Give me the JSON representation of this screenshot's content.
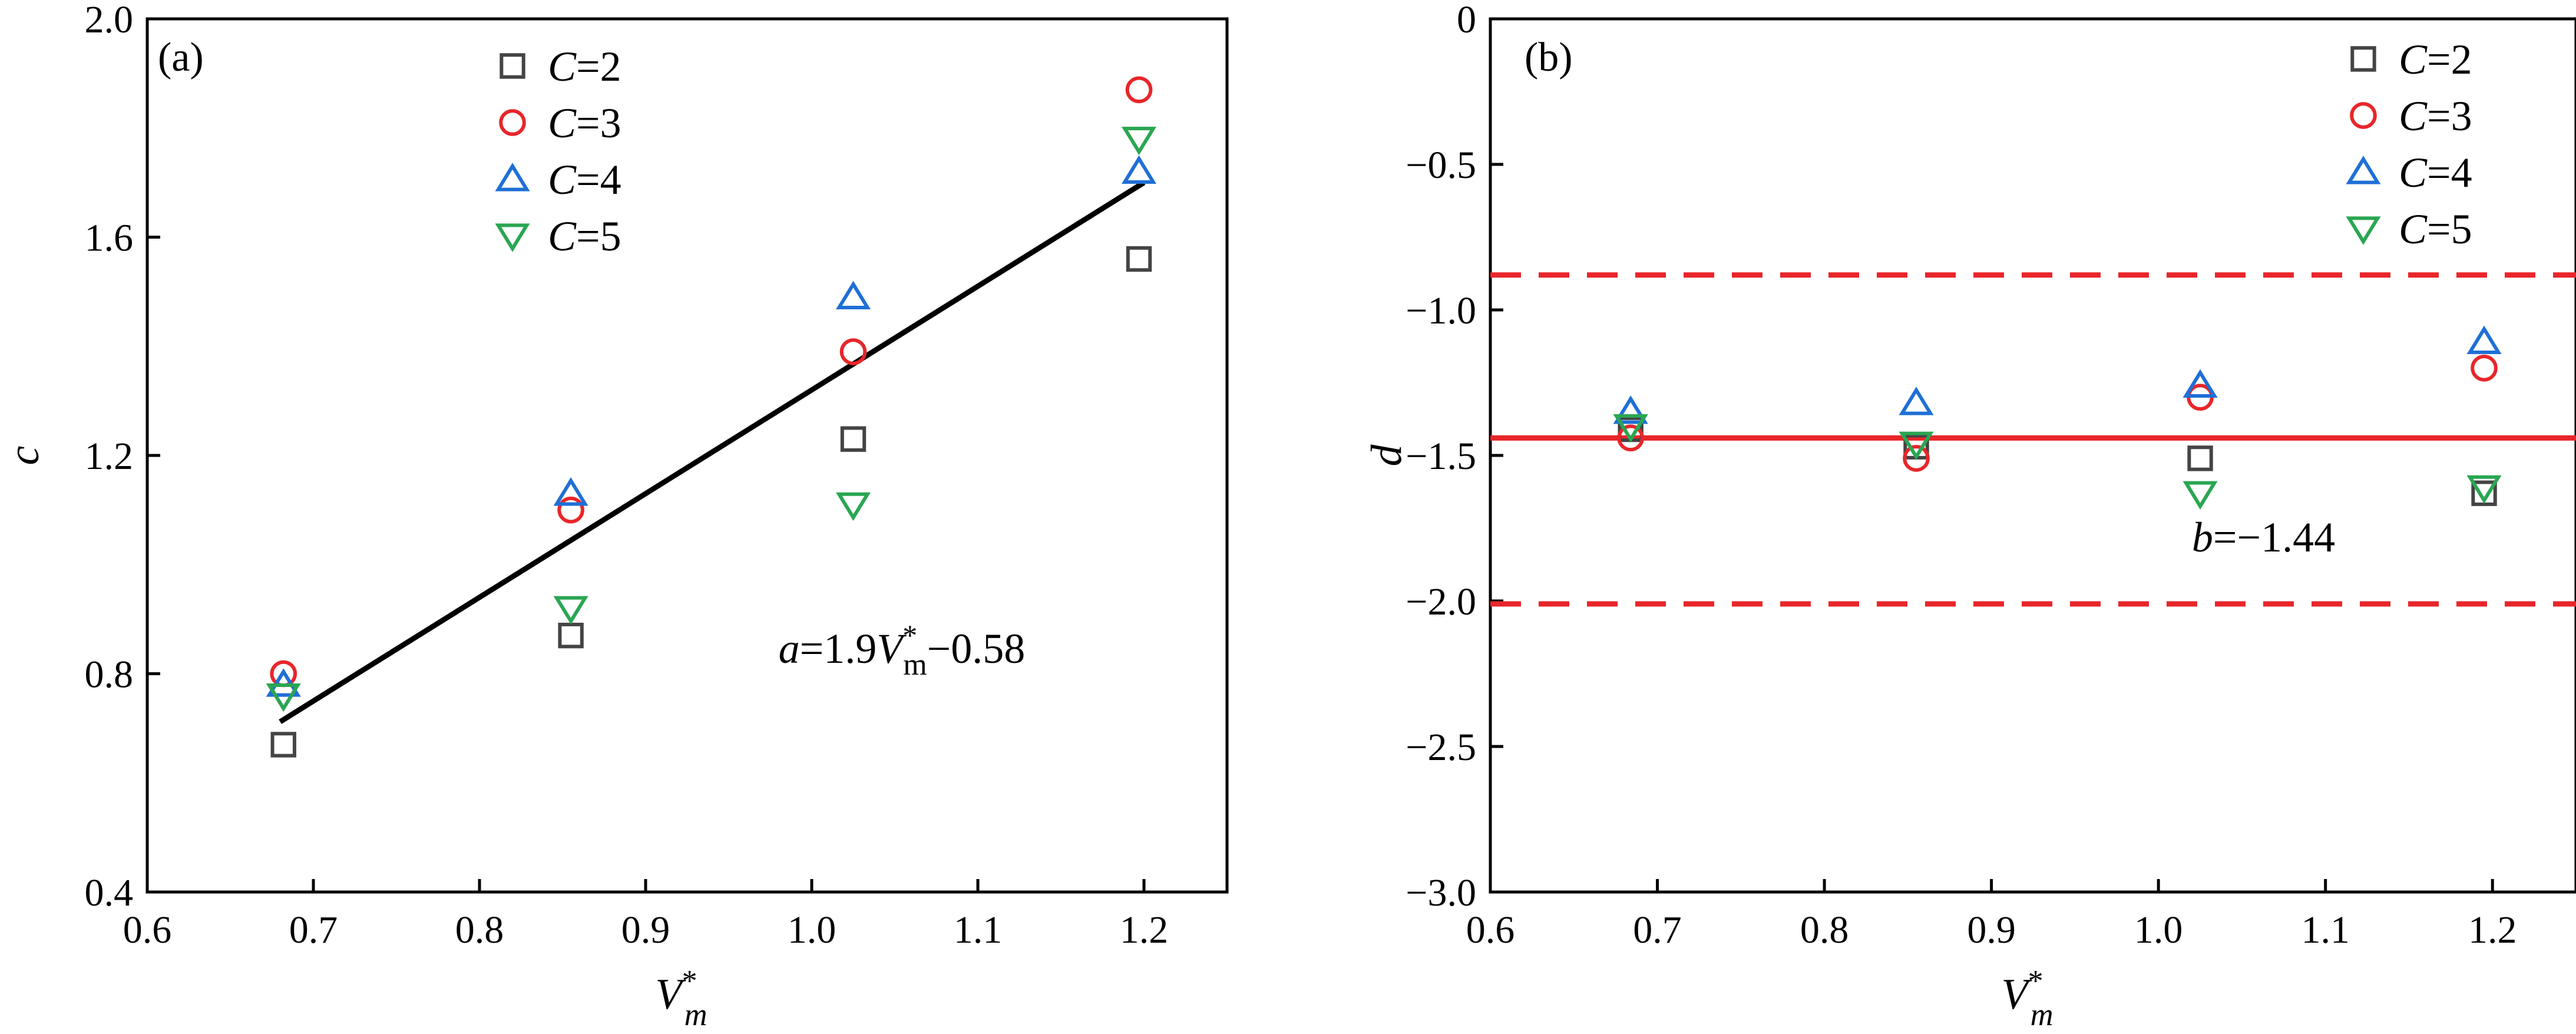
{
  "chart_data": [
    {
      "type": "scatter",
      "panel_label": "(a)",
      "xlabel": "V*m",
      "ylabel": "c",
      "xlim": [
        0.6,
        1.25
      ],
      "ylim": [
        0.4,
        2.0
      ],
      "x_ticks": [
        0.6,
        0.7,
        0.8,
        0.9,
        1.0,
        1.1,
        1.2
      ],
      "x_tick_labels": [
        "0.6",
        "0.7",
        "0.8",
        "0.9",
        "1.0",
        "1.1",
        "1.2"
      ],
      "y_ticks": [
        0.4,
        0.8,
        1.2,
        1.6,
        2.0
      ],
      "y_tick_labels": [
        "0.4",
        "0.8",
        "1.2",
        "1.6",
        "2.0"
      ],
      "legend_position": "top-center",
      "series": [
        {
          "name": "C=2",
          "label_var": "C",
          "label_val": "=2",
          "marker": "square",
          "color": "#444444",
          "x": [
            0.682,
            0.855,
            1.025,
            1.197
          ],
          "values": [
            0.67,
            0.87,
            1.23,
            1.56
          ]
        },
        {
          "name": "C=3",
          "label_var": "C",
          "label_val": "=3",
          "marker": "circle",
          "color": "#e8262a",
          "x": [
            0.682,
            0.855,
            1.025,
            1.197
          ],
          "values": [
            0.8,
            1.1,
            1.39,
            1.87
          ]
        },
        {
          "name": "C=4",
          "label_var": "C",
          "label_val": "=4",
          "marker": "triangle-up",
          "color": "#1f6fd6",
          "x": [
            0.682,
            0.855,
            1.025,
            1.197
          ],
          "values": [
            0.78,
            1.13,
            1.49,
            1.72
          ]
        },
        {
          "name": "C=5",
          "label_var": "C",
          "label_val": "=5",
          "marker": "triangle-down",
          "color": "#2aa652",
          "x": [
            0.682,
            0.855,
            1.025,
            1.197
          ],
          "values": [
            0.76,
            0.92,
            1.11,
            1.78
          ]
        }
      ],
      "fit_line": {
        "x": [
          0.68,
          1.2
        ],
        "y": [
          0.712,
          1.7
        ],
        "color": "#000000",
        "style": "solid"
      },
      "annotation": {
        "prefix": "a",
        "eq": "=1.9",
        "var": "V",
        "sup": "*",
        "sub": "m",
        "rest": "−0.58",
        "x": 0.98,
        "y": 0.82
      }
    },
    {
      "type": "scatter",
      "panel_label": "(b)",
      "xlabel": "V*m",
      "ylabel": "d",
      "xlim": [
        0.6,
        1.25
      ],
      "ylim": [
        -3.0,
        0.0
      ],
      "x_ticks": [
        0.6,
        0.7,
        0.8,
        0.9,
        1.0,
        1.1,
        1.2
      ],
      "x_tick_labels": [
        "0.6",
        "0.7",
        "0.8",
        "0.9",
        "1.0",
        "1.1",
        "1.2"
      ],
      "y_ticks": [
        0.0,
        -0.5,
        -1.0,
        -1.5,
        -2.0,
        -2.5,
        -3.0
      ],
      "y_tick_labels": [
        "0",
        "−0.5",
        "−1.0",
        "−1.5",
        "−2.0",
        "−2.5",
        "−3.0"
      ],
      "legend_position": "top-right",
      "series": [
        {
          "name": "C=2",
          "label_var": "C",
          "label_val": "=2",
          "marker": "square",
          "color": "#444444",
          "x": [
            0.684,
            0.855,
            1.025,
            1.195
          ],
          "values": [
            -1.41,
            -1.47,
            -1.51,
            -1.63
          ]
        },
        {
          "name": "C=3",
          "label_var": "C",
          "label_val": "=3",
          "marker": "circle",
          "color": "#e8262a",
          "x": [
            0.684,
            0.855,
            1.025,
            1.195
          ],
          "values": [
            -1.44,
            -1.51,
            -1.3,
            -1.2
          ]
        },
        {
          "name": "C=4",
          "label_var": "C",
          "label_val": "=4",
          "marker": "triangle-up",
          "color": "#1f6fd6",
          "x": [
            0.684,
            0.855,
            1.025,
            1.195
          ],
          "values": [
            -1.35,
            -1.32,
            -1.26,
            -1.11
          ]
        },
        {
          "name": "C=5",
          "label_var": "C",
          "label_val": "=5",
          "marker": "triangle-down",
          "color": "#2aa652",
          "x": [
            0.684,
            0.855,
            1.025,
            1.195
          ],
          "values": [
            -1.4,
            -1.46,
            -1.63,
            -1.61
          ]
        }
      ],
      "mean_line": {
        "value": -1.44,
        "color": "#e8262a",
        "style": "solid"
      },
      "band_lines": {
        "values": [
          -0.88,
          -2.01
        ],
        "color": "#e8262a",
        "style": "dashed"
      },
      "annotation": {
        "prefix": "b",
        "eq": "=−1.44",
        "x": 1.02,
        "y": -1.83
      }
    }
  ]
}
